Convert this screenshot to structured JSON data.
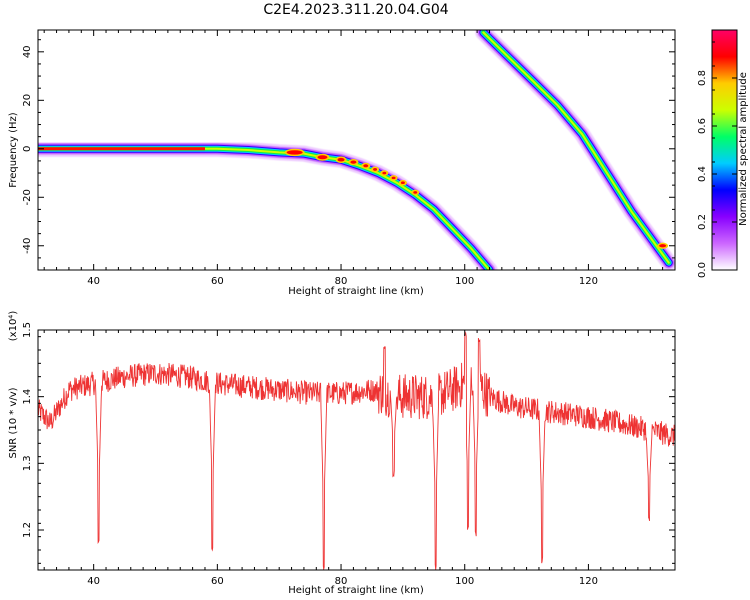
{
  "figure_title": "C2E4.2023.311.20.04.G04",
  "colors": {
    "snr_line": "#ee3333",
    "colormap": [
      "#ffffff",
      "#cc66ff",
      "#8800ff",
      "#0000ff",
      "#00ccff",
      "#00ff66",
      "#ccff00",
      "#ffcc00",
      "#ff0000",
      "#ff0066"
    ]
  },
  "chart_data": [
    {
      "type": "heatmap",
      "title": "",
      "xlabel": "Height of straight line (km)",
      "ylabel": "Frequency (Hz)",
      "xlim": [
        31,
        134
      ],
      "ylim": [
        -50,
        49
      ],
      "xticks": [
        40,
        60,
        80,
        100,
        120
      ],
      "yticks": [
        -40,
        -20,
        0,
        20,
        40
      ],
      "traces": [
        {
          "name": "main-trace",
          "x": [
            31,
            40,
            50,
            60,
            65,
            70,
            74,
            77,
            80,
            83,
            86,
            89,
            92,
            95,
            98,
            101,
            104
          ],
          "y": [
            0,
            0,
            0,
            0,
            -0.5,
            -1.5,
            -2,
            -3.5,
            -4.5,
            -7,
            -10,
            -14,
            -19,
            -25,
            -33,
            -41,
            -50
          ]
        },
        {
          "name": "aliased-trace",
          "x": [
            103,
            107,
            111,
            115,
            119,
            122,
            125,
            127,
            129,
            131,
            133
          ],
          "y": [
            48,
            38,
            28,
            18,
            6,
            -6,
            -18,
            -26,
            -33,
            -40,
            -47
          ]
        }
      ],
      "colorbar": {
        "label": "Normalized spectral amplitude",
        "range": [
          0,
          1
        ],
        "ticks": [
          "0.0",
          "0.2",
          "0.4",
          "0.6",
          "0.8"
        ]
      }
    },
    {
      "type": "line",
      "title": "",
      "xlabel": "Height of straight line (km)",
      "ylabel": "SNR (10 * v/v)",
      "y_multiplier": "(x10⁴)",
      "xlim": [
        31,
        134
      ],
      "ylim": [
        1.14,
        1.5
      ],
      "xticks": [
        40,
        60,
        80,
        100,
        120
      ],
      "yticks": [
        "1.2",
        "1.3",
        "1.4",
        "1.5"
      ],
      "series": [
        {
          "name": "SNR",
          "baseline": {
            "x": [
              31,
              33,
              36,
              40,
              45,
              50,
              55,
              60,
              65,
              70,
              75,
              80,
              85,
              90,
              95,
              98,
              100,
              102,
              104,
              108,
              112,
              116,
              120,
              125,
              130,
              134
            ],
            "y": [
              1.38,
              1.36,
              1.41,
              1.42,
              1.43,
              1.435,
              1.43,
              1.42,
              1.415,
              1.41,
              1.405,
              1.405,
              1.41,
              1.4,
              1.4,
              1.41,
              1.42,
              1.42,
              1.4,
              1.385,
              1.38,
              1.375,
              1.37,
              1.36,
              1.35,
              1.34
            ]
          },
          "dips": [
            {
              "x": 40.8,
              "y": 1.18
            },
            {
              "x": 59.2,
              "y": 1.17
            },
            {
              "x": 77.2,
              "y": 1.14
            },
            {
              "x": 88.5,
              "y": 1.28
            },
            {
              "x": 95.3,
              "y": 1.14
            },
            {
              "x": 100.5,
              "y": 1.2
            },
            {
              "x": 101.8,
              "y": 1.19
            },
            {
              "x": 112.5,
              "y": 1.15
            },
            {
              "x": 129.8,
              "y": 1.21
            }
          ],
          "spikes": [
            {
              "x": 87.0,
              "y": 1.48
            },
            {
              "x": 100.1,
              "y": 1.5
            },
            {
              "x": 102.3,
              "y": 1.49
            }
          ]
        }
      ]
    }
  ]
}
